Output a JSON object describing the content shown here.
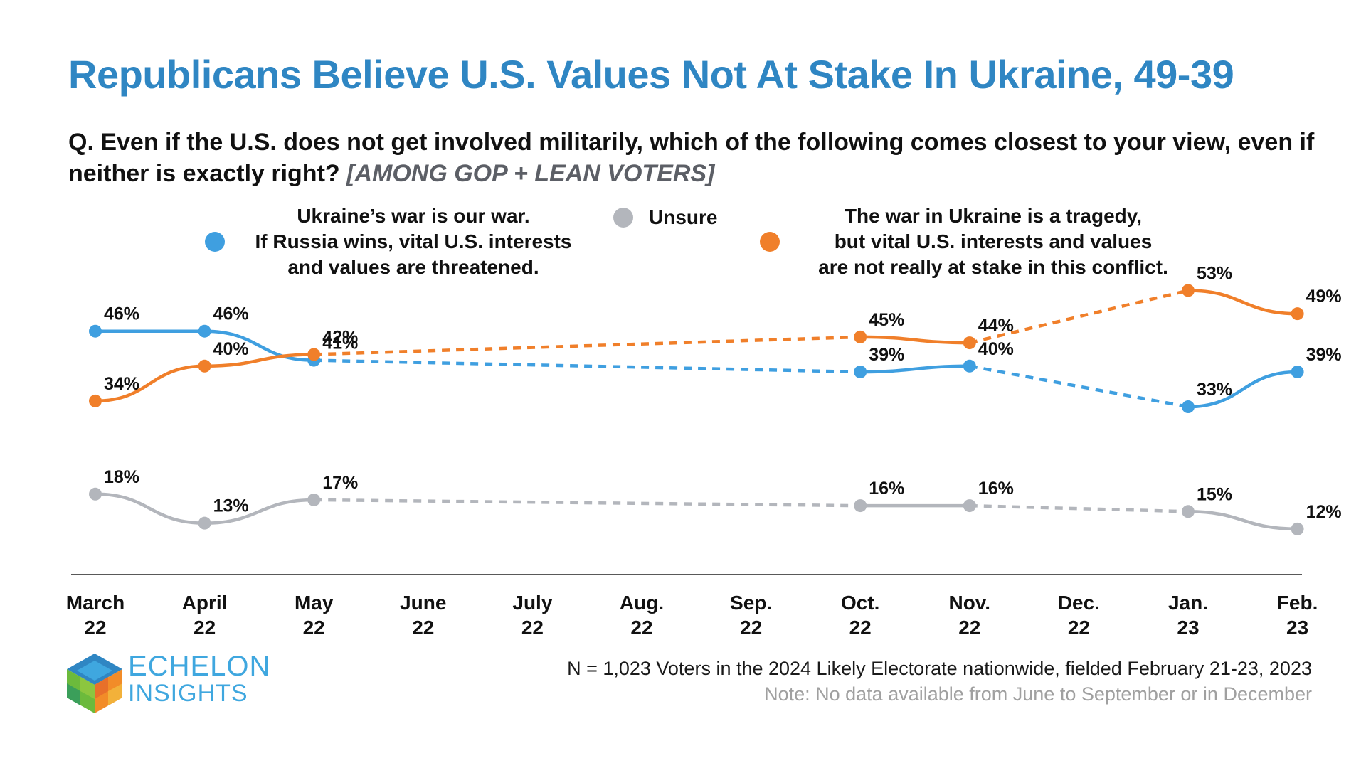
{
  "title": "Republicans Believe U.S. Values Not At Stake In Ukraine, 49-39",
  "question": {
    "text": "Q. Even if the U.S. does not get involved militarily, which of the following comes closest to your view, even if neither is exactly right?",
    "qualifier": "[AMONG GOP + LEAN VOTERS]"
  },
  "legend": {
    "blue_line1": "Ukraine’s war is our war.",
    "blue_line2": "If Russia wins, vital U.S. interests",
    "blue_line3": "and values are threatened.",
    "gray": "Unsure",
    "orange_line1": "The war in Ukraine is a tragedy,",
    "orange_line2": "but vital U.S. interests and values",
    "orange_line3": "are not really at stake in this conflict."
  },
  "colors": {
    "title": "#2f86c3",
    "blue_series": "#3f9fe0",
    "orange_series": "#f07f2a",
    "gray_series": "#b3b6bc"
  },
  "chart_data": {
    "type": "line",
    "months": [
      "March",
      "April",
      "May",
      "June",
      "July",
      "Aug.",
      "Sep.",
      "Oct.",
      "Nov.",
      "Dec.",
      "Jan.",
      "Feb."
    ],
    "years": [
      "22",
      "22",
      "22",
      "22",
      "22",
      "22",
      "22",
      "22",
      "22",
      "22",
      "23",
      "23"
    ],
    "ylim": [
      0,
      60
    ],
    "series": [
      {
        "name": "Ukraine’s war is our war. If Russia wins, vital U.S. interests and values are threatened.",
        "color": "#3f9fe0",
        "values": [
          46,
          46,
          41,
          null,
          null,
          null,
          null,
          39,
          40,
          null,
          33,
          39
        ]
      },
      {
        "name": "The war in Ukraine is a tragedy, but vital U.S. interests and values are not really at stake in this conflict.",
        "color": "#f07f2a",
        "values": [
          34,
          40,
          42,
          null,
          null,
          null,
          null,
          45,
          44,
          null,
          53,
          49
        ]
      },
      {
        "name": "Unsure",
        "color": "#b3b6bc",
        "values": [
          18,
          13,
          17,
          null,
          null,
          null,
          null,
          16,
          16,
          null,
          15,
          12
        ]
      }
    ],
    "notes": "Dashed segments bridge months with no data."
  },
  "logo": {
    "line1": "ECHELON",
    "line2": "INSIGHTS"
  },
  "footnote": "N = 1,023 Voters in the 2024 Likely Electorate nationwide, fielded February 21-23, 2023",
  "note": "Note: No data available from June to September or in December"
}
